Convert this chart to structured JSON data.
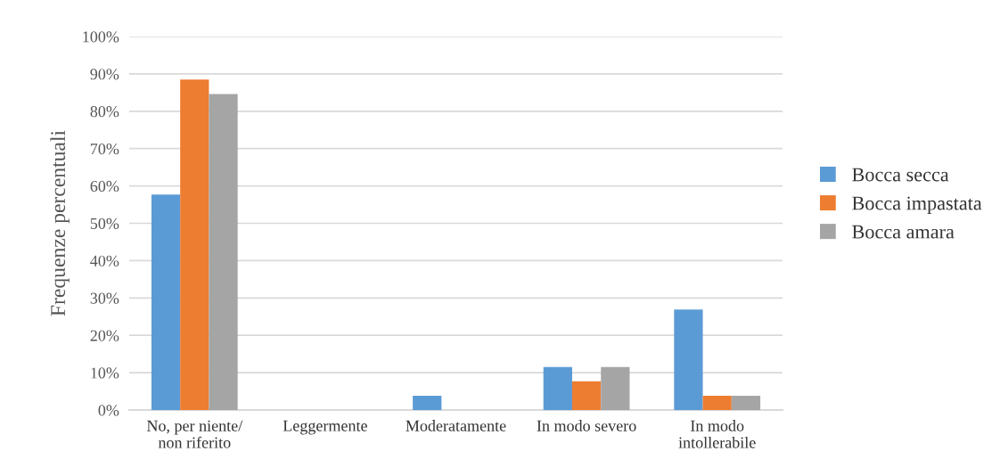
{
  "chart_data": {
    "type": "bar",
    "ylabel": "Frequenze percentuali",
    "categories": [
      "No, per niente/\nnon riferito",
      "Leggermente",
      "Moderatamente",
      "In modo severo",
      "In modo\nintollerabile"
    ],
    "series": [
      {
        "name": "Bocca secca",
        "color": "#5b9bd5",
        "values": [
          57.7,
          0,
          3.8,
          11.5,
          26.9
        ]
      },
      {
        "name": "Bocca impastata",
        "color": "#ed7d31",
        "values": [
          88.5,
          0,
          0,
          7.7,
          3.8
        ]
      },
      {
        "name": "Bocca amara",
        "color": "#a5a5a5",
        "values": [
          84.6,
          0,
          0,
          11.5,
          3.8
        ]
      }
    ],
    "ylim": [
      0,
      100
    ],
    "yticks": [
      {
        "value": 0,
        "label": "0%"
      },
      {
        "value": 10,
        "label": "10%"
      },
      {
        "value": 20,
        "label": "20%"
      },
      {
        "value": 30,
        "label": "30%"
      },
      {
        "value": 40,
        "label": "40%"
      },
      {
        "value": 50,
        "label": "50%"
      },
      {
        "value": 60,
        "label": "60%"
      },
      {
        "value": 70,
        "label": "70%"
      },
      {
        "value": 80,
        "label": "80%"
      },
      {
        "value": 90,
        "label": "90%"
      },
      {
        "value": 100,
        "label": "100%"
      }
    ],
    "grid": "y",
    "legend": "right"
  }
}
